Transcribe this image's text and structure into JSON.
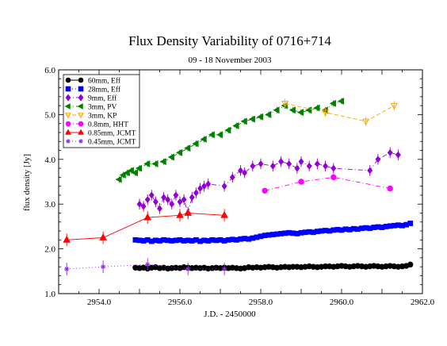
{
  "chart_data": {
    "type": "scatter",
    "title": "Flux Density Variability of 0716+714",
    "subtitle": "09 - 18 November 2003",
    "xlabel": "J.D. - 2450000",
    "ylabel": "flux density [Jy]",
    "xlim": [
      2953.0,
      2962.0
    ],
    "ylim": [
      1.0,
      6.0
    ],
    "xticks": [
      2954.0,
      2956.0,
      2958.0,
      2960.0,
      2962.0
    ],
    "xtick_labels": [
      "2954.0",
      "2956.0",
      "2958.0",
      "2960.0",
      "2962.0"
    ],
    "yticks": [
      1.0,
      2.0,
      3.0,
      4.0,
      5.0,
      6.0
    ],
    "ytick_labels": [
      "1.0",
      "2.0",
      "3.0",
      "4.0",
      "5.0",
      "6.0"
    ],
    "legend_position": "top-left",
    "series": [
      {
        "name": "60mm, Eff",
        "color": "#000000",
        "marker": "circle",
        "line": "none",
        "x": [
          2954.9,
          2955.0,
          2955.1,
          2955.2,
          2955.3,
          2955.4,
          2955.5,
          2955.6,
          2955.7,
          2955.8,
          2955.9,
          2956.0,
          2956.1,
          2956.2,
          2956.3,
          2956.4,
          2956.5,
          2956.6,
          2956.7,
          2956.8,
          2956.9,
          2957.0,
          2957.1,
          2957.2,
          2957.3,
          2957.4,
          2957.5,
          2957.6,
          2957.7,
          2957.8,
          2957.9,
          2958.0,
          2958.1,
          2958.2,
          2958.3,
          2958.4,
          2958.5,
          2958.6,
          2958.7,
          2958.8,
          2958.9,
          2959.0,
          2959.1,
          2959.2,
          2959.3,
          2959.4,
          2959.5,
          2959.6,
          2959.7,
          2959.8,
          2959.9,
          2960.0,
          2960.1,
          2960.2,
          2960.3,
          2960.4,
          2960.5,
          2960.6,
          2960.7,
          2960.8,
          2960.9,
          2961.0,
          2961.1,
          2961.2,
          2961.3,
          2961.4,
          2961.5,
          2961.6,
          2961.7
        ],
        "y": [
          1.58,
          1.57,
          1.58,
          1.56,
          1.58,
          1.59,
          1.57,
          1.58,
          1.56,
          1.57,
          1.58,
          1.57,
          1.59,
          1.58,
          1.57,
          1.58,
          1.57,
          1.58,
          1.56,
          1.57,
          1.58,
          1.57,
          1.58,
          1.57,
          1.58,
          1.57,
          1.56,
          1.57,
          1.59,
          1.58,
          1.59,
          1.58,
          1.59,
          1.6,
          1.59,
          1.58,
          1.59,
          1.6,
          1.59,
          1.6,
          1.6,
          1.59,
          1.6,
          1.61,
          1.6,
          1.59,
          1.6,
          1.61,
          1.61,
          1.6,
          1.61,
          1.62,
          1.61,
          1.6,
          1.61,
          1.62,
          1.61,
          1.6,
          1.61,
          1.62,
          1.61,
          1.6,
          1.61,
          1.62,
          1.61,
          1.6,
          1.61,
          1.62,
          1.65
        ]
      },
      {
        "name": "28mm, Eff",
        "color": "#0000ff",
        "marker": "square",
        "line": "dotted",
        "x": [
          2954.9,
          2955.0,
          2955.1,
          2955.2,
          2955.3,
          2955.4,
          2955.5,
          2955.6,
          2955.7,
          2955.8,
          2955.9,
          2956.0,
          2956.1,
          2956.2,
          2956.3,
          2956.4,
          2956.5,
          2956.6,
          2956.7,
          2956.8,
          2956.9,
          2957.0,
          2957.1,
          2957.2,
          2957.3,
          2957.4,
          2957.5,
          2957.6,
          2957.7,
          2957.8,
          2957.9,
          2958.0,
          2958.1,
          2958.2,
          2958.3,
          2958.4,
          2958.5,
          2958.6,
          2958.7,
          2958.8,
          2958.9,
          2959.0,
          2959.1,
          2959.2,
          2959.3,
          2959.4,
          2959.5,
          2959.6,
          2959.7,
          2959.8,
          2959.9,
          2960.0,
          2960.1,
          2960.2,
          2960.3,
          2960.4,
          2960.5,
          2960.6,
          2960.7,
          2960.8,
          2960.9,
          2961.0,
          2961.1,
          2961.2,
          2961.3,
          2961.4,
          2961.5,
          2961.6,
          2961.7
        ],
        "y": [
          2.2,
          2.19,
          2.18,
          2.2,
          2.17,
          2.19,
          2.18,
          2.2,
          2.19,
          2.18,
          2.19,
          2.2,
          2.18,
          2.19,
          2.18,
          2.2,
          2.17,
          2.19,
          2.18,
          2.2,
          2.19,
          2.2,
          2.18,
          2.2,
          2.21,
          2.2,
          2.22,
          2.23,
          2.22,
          2.24,
          2.26,
          2.28,
          2.3,
          2.31,
          2.32,
          2.33,
          2.34,
          2.35,
          2.36,
          2.35,
          2.34,
          2.36,
          2.37,
          2.38,
          2.37,
          2.39,
          2.4,
          2.41,
          2.4,
          2.42,
          2.43,
          2.42,
          2.44,
          2.43,
          2.45,
          2.44,
          2.46,
          2.47,
          2.46,
          2.48,
          2.49,
          2.48,
          2.5,
          2.51,
          2.52,
          2.53,
          2.52,
          2.54,
          2.57
        ]
      },
      {
        "name": "9mm, Eff",
        "color": "#9400d3",
        "marker": "diamond",
        "line": "dashdot",
        "x": [
          2955.0,
          2955.1,
          2955.2,
          2955.3,
          2955.4,
          2955.5,
          2955.6,
          2955.7,
          2955.8,
          2955.9,
          2956.0,
          2956.1,
          2956.2,
          2956.3,
          2956.4,
          2956.5,
          2956.6,
          2956.7,
          2957.1,
          2957.3,
          2957.5,
          2957.6,
          2957.8,
          2958.0,
          2958.3,
          2958.5,
          2958.7,
          2958.9,
          2959.0,
          2959.2,
          2959.4,
          2959.6,
          2959.8,
          2960.7,
          2960.9,
          2961.2,
          2961.4
        ],
        "y": [
          3.0,
          2.95,
          3.1,
          3.2,
          3.05,
          2.9,
          3.15,
          3.1,
          3.0,
          3.2,
          3.05,
          3.1,
          2.8,
          3.15,
          3.25,
          3.35,
          3.4,
          3.45,
          3.4,
          3.6,
          3.75,
          3.7,
          3.85,
          3.9,
          3.85,
          3.95,
          3.9,
          3.8,
          3.95,
          3.85,
          3.9,
          3.85,
          3.8,
          3.75,
          4.0,
          4.15,
          4.1
        ]
      },
      {
        "name": "3mm, PV",
        "color": "#008000",
        "marker": "triangle-left",
        "line": "dashdot",
        "x": [
          2954.5,
          2954.6,
          2954.7,
          2954.8,
          2954.9,
          2955.0,
          2955.2,
          2955.4,
          2955.6,
          2955.8,
          2956.0,
          2956.2,
          2956.4,
          2956.6,
          2956.8,
          2957.0,
          2957.2,
          2957.4,
          2957.6,
          2957.8,
          2958.0,
          2958.2,
          2958.4,
          2958.6,
          2958.8,
          2959.0,
          2959.2,
          2959.4,
          2959.6,
          2959.8,
          2960.0
        ],
        "y": [
          3.55,
          3.65,
          3.7,
          3.75,
          3.7,
          3.8,
          3.9,
          3.9,
          3.95,
          4.05,
          4.15,
          4.25,
          4.35,
          4.45,
          4.55,
          4.55,
          4.65,
          4.75,
          4.85,
          4.9,
          4.95,
          5.0,
          5.1,
          5.2,
          5.1,
          5.05,
          5.1,
          5.15,
          5.1,
          5.25,
          5.3
        ]
      },
      {
        "name": "3mm, KP",
        "color": "#ffa500",
        "marker": "triangle-down",
        "line": "dashed",
        "x": [
          2958.6,
          2959.6,
          2960.6,
          2961.3
        ],
        "y": [
          5.25,
          5.05,
          4.85,
          5.2
        ]
      },
      {
        "name": "0.8mm, HHT",
        "color": "#ff00ff",
        "marker": "circle",
        "line": "dashdot",
        "x": [
          2958.1,
          2959.0,
          2959.8,
          2961.2
        ],
        "y": [
          3.3,
          3.5,
          3.6,
          3.35
        ]
      },
      {
        "name": "0.85mm, JCMT",
        "color": "#ff0000",
        "marker": "triangle-up",
        "line": "solid",
        "x": [
          2953.2,
          2954.1,
          2955.2,
          2956.0,
          2956.2,
          2957.1
        ],
        "y": [
          2.2,
          2.25,
          2.7,
          2.75,
          2.8,
          2.75
        ]
      },
      {
        "name": "0.45mm, JCMT",
        "color": "#8a2be2",
        "marker": "star",
        "line": "dotted",
        "x": [
          2953.2,
          2954.1,
          2955.2,
          2956.2,
          2957.1
        ],
        "y": [
          1.55,
          1.6,
          1.65,
          1.55,
          1.55
        ]
      }
    ]
  }
}
